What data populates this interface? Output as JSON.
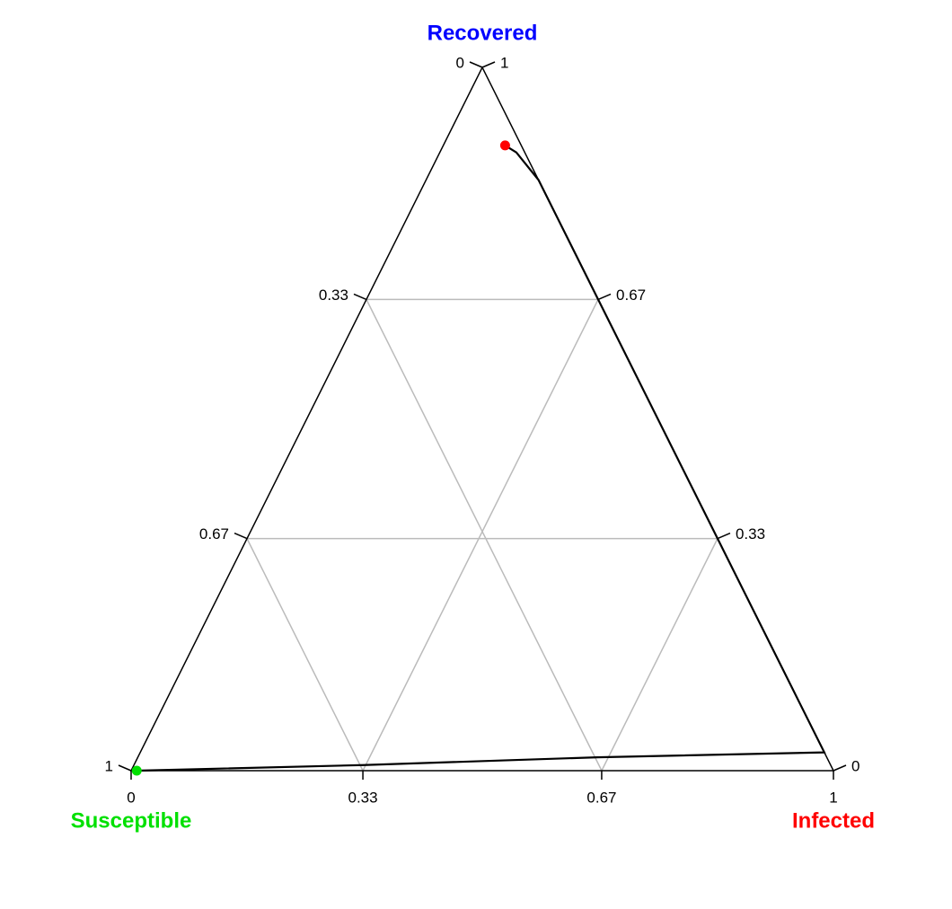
{
  "chart_data": {
    "type": "ternary",
    "axes": [
      {
        "name": "Susceptible",
        "color": "#00e000",
        "ticks": [
          0,
          0.33,
          0.67,
          1
        ]
      },
      {
        "name": "Infected",
        "color": "#ff0000",
        "ticks": [
          0,
          0.33,
          0.67,
          1
        ]
      },
      {
        "name": "Recovered",
        "color": "#0000ff",
        "ticks": [
          0,
          0.33,
          0.67,
          1
        ]
      }
    ],
    "grid": true,
    "grid_color": "#bbbbbb",
    "series": [
      {
        "color": "#000000",
        "s": [
          0.992,
          0.665,
          0.327,
          0.0,
          0.0,
          0.0,
          0.0,
          0.012,
          0.023
        ],
        "i": [
          0.008,
          0.327,
          0.654,
          0.974,
          0.668,
          0.328,
          0.16,
          0.109,
          0.088
        ],
        "r": [
          0,
          0.008,
          0.019,
          0.026,
          0.332,
          0.672,
          0.84,
          0.879,
          0.889
        ]
      }
    ],
    "start_color": "#00e000",
    "end_color": "#ff0000"
  }
}
